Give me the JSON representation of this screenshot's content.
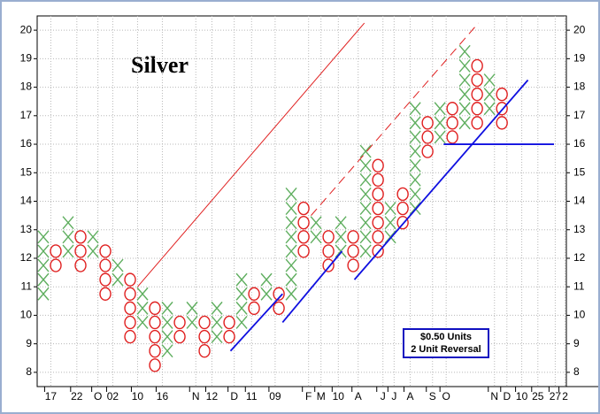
{
  "chart_data": {
    "type": "pointfigure",
    "title": "Silver",
    "box_note": [
      "$0.50 Units",
      "2 Unit Reversal"
    ],
    "x_color": "#5fae5f",
    "o_color": "#e02020",
    "box_size": 0.5,
    "columns": [
      {
        "type": "X",
        "low": 10.75,
        "high": 12.75
      },
      {
        "type": "O",
        "low": 11.75,
        "high": 12.25
      },
      {
        "type": "X",
        "low": 12.25,
        "high": 13.25
      },
      {
        "type": "O",
        "low": 11.75,
        "high": 12.75
      },
      {
        "type": "X",
        "low": 12.25,
        "high": 12.75
      },
      {
        "type": "O",
        "low": 10.75,
        "high": 12.25
      },
      {
        "type": "X",
        "low": 11.25,
        "high": 11.75
      },
      {
        "type": "O",
        "low": 9.25,
        "high": 11.25
      },
      {
        "type": "X",
        "low": 9.75,
        "high": 10.75
      },
      {
        "type": "O",
        "low": 8.25,
        "high": 10.25
      },
      {
        "type": "X",
        "low": 8.75,
        "high": 10.25
      },
      {
        "type": "O",
        "low": 9.25,
        "high": 9.75
      },
      {
        "type": "X",
        "low": 9.75,
        "high": 10.25
      },
      {
        "type": "O",
        "low": 8.75,
        "high": 9.75
      },
      {
        "type": "X",
        "low": 9.25,
        "high": 10.25
      },
      {
        "type": "O",
        "low": 9.25,
        "high": 9.75
      },
      {
        "type": "X",
        "low": 9.75,
        "high": 11.25
      },
      {
        "type": "O",
        "low": 10.25,
        "high": 10.75
      },
      {
        "type": "X",
        "low": 10.75,
        "high": 11.25
      },
      {
        "type": "O",
        "low": 10.25,
        "high": 10.75
      },
      {
        "type": "X",
        "low": 10.75,
        "high": 14.25
      },
      {
        "type": "O",
        "low": 12.25,
        "high": 13.75
      },
      {
        "type": "X",
        "low": 12.75,
        "high": 13.25
      },
      {
        "type": "O",
        "low": 11.75,
        "high": 12.75
      },
      {
        "type": "X",
        "low": 12.25,
        "high": 13.25
      },
      {
        "type": "O",
        "low": 11.75,
        "high": 12.75
      },
      {
        "type": "X",
        "low": 12.25,
        "high": 15.75
      },
      {
        "type": "O",
        "low": 12.25,
        "high": 15.25
      },
      {
        "type": "X",
        "low": 12.75,
        "high": 13.75
      },
      {
        "type": "O",
        "low": 13.25,
        "high": 14.25
      },
      {
        "type": "X",
        "low": 13.75,
        "high": 17.25
      },
      {
        "type": "O",
        "low": 15.75,
        "high": 16.75
      },
      {
        "type": "X",
        "low": 16.25,
        "high": 17.25
      },
      {
        "type": "O",
        "low": 16.25,
        "high": 17.25
      },
      {
        "type": "X",
        "low": 16.75,
        "high": 19.25
      },
      {
        "type": "O",
        "low": 16.75,
        "high": 18.75
      },
      {
        "type": "X",
        "low": 17.25,
        "high": 18.25
      },
      {
        "type": "O",
        "low": 16.75,
        "high": 17.75
      }
    ],
    "lines": [
      {
        "color": "#e02020",
        "dashed": false,
        "x": [
          7.6,
          25.9
        ],
        "y": [
          11,
          20.25
        ]
      },
      {
        "color": "#e02020",
        "dashed": true,
        "x": [
          21.6,
          35.1
        ],
        "y": [
          13.5,
          20.25
        ]
      },
      {
        "color": "#1010e0",
        "dashed": false,
        "x": [
          15.1,
          19.3
        ],
        "y": [
          8.75,
          10.75
        ]
      },
      {
        "color": "#1010e0",
        "dashed": false,
        "x": [
          19.3,
          24.1
        ],
        "y": [
          9.75,
          12.25
        ]
      },
      {
        "color": "#1010e0",
        "dashed": false,
        "x": [
          25.1,
          39.1
        ],
        "y": [
          11.25,
          18.25
        ]
      },
      {
        "color": "#1010e0",
        "dashed": false,
        "x": [
          32.3,
          41.2
        ],
        "y": [
          16,
          16
        ]
      }
    ],
    "xlim": [
      -0.5,
      42.2
    ],
    "ylim": [
      7.5,
      20.5
    ],
    "xticks": [
      {
        "value": 0.6,
        "label": "17"
      },
      {
        "value": 2.7,
        "label": "22"
      },
      {
        "value": 4.4,
        "label": "O"
      },
      {
        "value": 5.6,
        "label": "02"
      },
      {
        "value": 7.6,
        "label": "10"
      },
      {
        "value": 9.6,
        "label": "16"
      },
      {
        "value": 12.3,
        "label": "N"
      },
      {
        "value": 13.6,
        "label": "12"
      },
      {
        "value": 15.4,
        "label": "D"
      },
      {
        "value": 16.8,
        "label": "11"
      },
      {
        "value": 18.7,
        "label": "09"
      },
      {
        "value": 21.4,
        "label": "F"
      },
      {
        "value": 22.4,
        "label": "M"
      },
      {
        "value": 23.8,
        "label": "10"
      },
      {
        "value": 25.4,
        "label": "A"
      },
      {
        "value": 27.4,
        "label": "J"
      },
      {
        "value": 28.3,
        "label": "J"
      },
      {
        "value": 29.6,
        "label": "A"
      },
      {
        "value": 31.4,
        "label": "S"
      },
      {
        "value": 32.5,
        "label": "O"
      },
      {
        "value": 36.4,
        "label": "N"
      },
      {
        "value": 37.4,
        "label": "D"
      },
      {
        "value": 38.6,
        "label": "10"
      },
      {
        "value": 39.9,
        "label": "25"
      },
      {
        "value": 41.3,
        "label": "27"
      },
      {
        "value": 42.1,
        "label": "2"
      }
    ],
    "yticks": [
      8,
      9,
      10,
      11,
      12,
      13,
      14,
      15,
      16,
      17,
      18,
      19,
      20
    ],
    "grid": true
  }
}
